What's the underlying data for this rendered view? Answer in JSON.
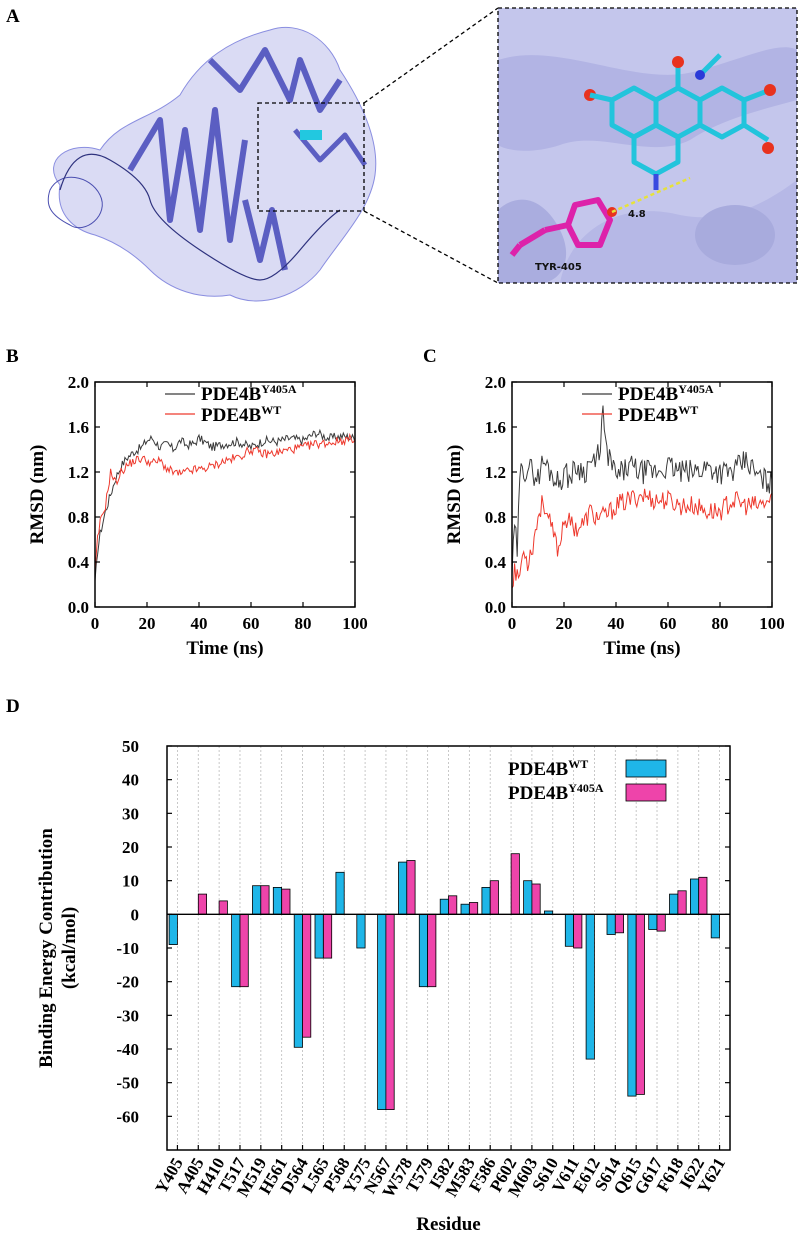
{
  "panels": {
    "a": "A",
    "b": "B",
    "c": "C",
    "d": "D"
  },
  "structure": {
    "residue_label": "TYR-405",
    "distance_label": "4.8"
  },
  "colors": {
    "wt_line": "#ee3a2e",
    "mut_line": "#3b3b3b",
    "wt_bar": "#1fb6e8",
    "mut_bar": "#ee44aa",
    "protein": "#6a6ed4"
  },
  "chart_data": [
    {
      "id": "B",
      "type": "line",
      "xlabel": "Time (ns)",
      "ylabel": "RMSD (nm)",
      "xlim": [
        0,
        100
      ],
      "ylim": [
        0,
        2.0
      ],
      "xticks": [
        "0",
        "20",
        "40",
        "60",
        "80",
        "100"
      ],
      "yticks": [
        "0.0",
        "0.4",
        "0.8",
        "1.2",
        "1.6",
        "2.0"
      ],
      "legend": [
        {
          "base": "PDE4B",
          "sup": "Y405A"
        },
        {
          "base": "PDE4B",
          "sup": "WT"
        }
      ],
      "series": [
        {
          "name": "PDE4B Y405A",
          "x": [
            0,
            1,
            2,
            4,
            6,
            8,
            10,
            12,
            15,
            18,
            20,
            22,
            25,
            28,
            30,
            33,
            35,
            38,
            40,
            45,
            50,
            55,
            60,
            65,
            70,
            75,
            80,
            85,
            90,
            95,
            100
          ],
          "y": [
            0.2,
            0.5,
            0.65,
            0.85,
            1.0,
            1.15,
            1.25,
            1.32,
            1.38,
            1.42,
            1.48,
            1.5,
            1.42,
            1.45,
            1.4,
            1.48,
            1.44,
            1.45,
            1.5,
            1.42,
            1.45,
            1.47,
            1.42,
            1.48,
            1.47,
            1.5,
            1.48,
            1.55,
            1.5,
            1.52,
            1.5
          ]
        },
        {
          "name": "PDE4B WT",
          "x": [
            0,
            1,
            2,
            4,
            6,
            8,
            10,
            12,
            15,
            18,
            20,
            22,
            25,
            28,
            30,
            33,
            35,
            38,
            40,
            45,
            50,
            55,
            60,
            65,
            70,
            75,
            80,
            85,
            90,
            95,
            100
          ],
          "y": [
            0.3,
            0.6,
            0.75,
            0.9,
            1.2,
            1.1,
            1.2,
            1.25,
            1.3,
            1.32,
            1.3,
            1.28,
            1.3,
            1.22,
            1.2,
            1.18,
            1.2,
            1.22,
            1.22,
            1.25,
            1.3,
            1.33,
            1.4,
            1.36,
            1.37,
            1.4,
            1.42,
            1.45,
            1.46,
            1.48,
            1.5
          ]
        }
      ]
    },
    {
      "id": "C",
      "type": "line",
      "xlabel": "Time (ns)",
      "ylabel": "RMSD (nm)",
      "xlim": [
        0,
        100
      ],
      "ylim": [
        0,
        2.0
      ],
      "xticks": [
        "0",
        "20",
        "40",
        "60",
        "80",
        "100"
      ],
      "yticks": [
        "0.0",
        "0.4",
        "0.8",
        "1.2",
        "1.6",
        "2.0"
      ],
      "legend": [
        {
          "base": "PDE4B",
          "sup": "Y405A"
        },
        {
          "base": "PDE4B",
          "sup": "WT"
        }
      ],
      "series": [
        {
          "name": "PDE4B Y405A",
          "x": [
            0,
            1,
            2,
            3,
            4,
            5,
            6,
            8,
            10,
            12,
            15,
            18,
            20,
            22,
            25,
            28,
            30,
            32,
            34,
            35,
            36,
            38,
            40,
            45,
            50,
            55,
            60,
            65,
            70,
            75,
            80,
            85,
            90,
            95,
            100
          ],
          "y": [
            0.3,
            0.7,
            0.5,
            1.1,
            1.3,
            1.2,
            1.25,
            1.2,
            1.15,
            1.3,
            1.2,
            1.1,
            1.2,
            1.15,
            1.25,
            1.2,
            1.3,
            1.25,
            1.45,
            1.75,
            1.4,
            1.3,
            1.15,
            1.25,
            1.2,
            1.2,
            1.25,
            1.2,
            1.2,
            1.25,
            1.2,
            1.2,
            1.3,
            1.15,
            1.1
          ]
        },
        {
          "name": "PDE4B WT",
          "x": [
            0,
            1,
            2,
            3,
            4,
            5,
            6,
            8,
            10,
            12,
            15,
            18,
            20,
            22,
            25,
            28,
            30,
            32,
            35,
            38,
            40,
            45,
            50,
            55,
            60,
            65,
            70,
            75,
            80,
            85,
            90,
            95,
            100
          ],
          "y": [
            0.2,
            0.35,
            0.25,
            0.3,
            0.45,
            0.5,
            0.4,
            0.55,
            0.8,
            0.95,
            0.7,
            0.5,
            0.8,
            0.75,
            0.7,
            0.75,
            0.85,
            0.8,
            0.8,
            0.85,
            0.9,
            0.95,
            1.0,
            0.95,
            0.95,
            0.9,
            0.9,
            0.85,
            0.85,
            0.95,
            0.9,
            0.9,
            0.95
          ]
        }
      ]
    },
    {
      "id": "D",
      "type": "bar",
      "xlabel": "Residue",
      "ylabel": "Binding Energy Contribution",
      "ylabel2": "(kcal/mol)",
      "ylim": [
        -70,
        50
      ],
      "yticks": [
        "50",
        "40",
        "30",
        "20",
        "10",
        "0",
        "-10",
        "-20",
        "-30",
        "-40",
        "-50",
        "-60"
      ],
      "legend": [
        {
          "base": "PDE4B",
          "sup": "WT"
        },
        {
          "base": "PDE4B",
          "sup": "Y405A"
        }
      ],
      "categories": [
        "Y405",
        "A405",
        "H410",
        "T517",
        "M519",
        "H561",
        "D564",
        "L565",
        "P568",
        "Y575",
        "N567",
        "W578",
        "T579",
        "I582",
        "M583",
        "F586",
        "P602",
        "M603",
        "S610",
        "V611",
        "E612",
        "S614",
        "Q615",
        "G617",
        "F618",
        "I622",
        "Y621"
      ],
      "series": [
        {
          "name": "PDE4B WT",
          "values": [
            -9,
            0,
            0,
            -21.5,
            8.5,
            8,
            -39.5,
            -13,
            12.5,
            -10,
            -58,
            15.5,
            -21.5,
            4.5,
            3,
            8,
            0,
            10,
            1,
            -9.5,
            -43,
            -6,
            -54,
            -4.5,
            6,
            10.5,
            -7
          ]
        },
        {
          "name": "PDE4B Y405A",
          "values": [
            0,
            6,
            4,
            -21.5,
            8.5,
            7.5,
            -36.5,
            -13,
            0,
            0,
            -58,
            16,
            -21.5,
            5.5,
            3.5,
            10,
            18,
            9,
            0,
            -10,
            0,
            -5.5,
            -53.5,
            -5,
            7,
            11,
            0
          ]
        }
      ]
    }
  ]
}
